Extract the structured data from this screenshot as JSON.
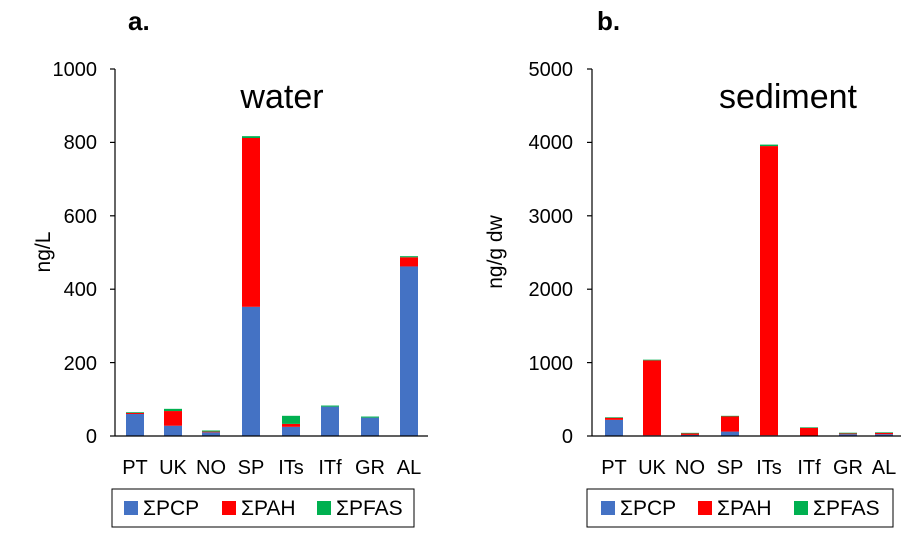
{
  "colors": {
    "PCP": "#4472C4",
    "PAH": "#FF0000",
    "PFAS": "#00B050"
  },
  "chart_data": [
    {
      "type": "bar",
      "stacked": true,
      "panel_label": "a.",
      "title": "water",
      "ylabel": "ng/L",
      "xlabel": "",
      "ylim": [
        0,
        1000
      ],
      "yticks": [
        "0",
        "200",
        "400",
        "600",
        "800",
        "1000"
      ],
      "categories": [
        "PT",
        "UK",
        "NO",
        "SP",
        "ITs",
        "ITf",
        "GR",
        "AL"
      ],
      "series": [
        {
          "name": "ΣPCP",
          "key": "PCP",
          "values": [
            60,
            28,
            10,
            352,
            25,
            80,
            50,
            462
          ]
        },
        {
          "name": "ΣPAH",
          "key": "PAH",
          "values": [
            3,
            40,
            2,
            460,
            8,
            0,
            0,
            25
          ]
        },
        {
          "name": "ΣPFAS",
          "key": "PFAS",
          "values": [
            2,
            6,
            3,
            5,
            22,
            3,
            3,
            3
          ]
        }
      ],
      "legend_position": "bottom"
    },
    {
      "type": "bar",
      "stacked": true,
      "panel_label": "b.",
      "title": "sediment",
      "ylabel": "ng/g dw",
      "xlabel": "",
      "ylim": [
        0,
        5000
      ],
      "yticks": [
        "0",
        "1000",
        "2000",
        "3000",
        "4000",
        "5000"
      ],
      "categories": [
        "PT",
        "UK",
        "NO",
        "SP",
        "ITs",
        "ITf",
        "GR",
        "AL"
      ],
      "series": [
        {
          "name": "ΣPCP",
          "key": "PCP",
          "values": [
            220,
            10,
            15,
            60,
            10,
            5,
            25,
            25
          ]
        },
        {
          "name": "ΣPAH",
          "key": "PAH",
          "values": [
            30,
            1020,
            20,
            210,
            3940,
            110,
            10,
            20
          ]
        },
        {
          "name": "ΣPFAS",
          "key": "PFAS",
          "values": [
            5,
            10,
            8,
            5,
            20,
            3,
            10,
            5
          ]
        }
      ],
      "legend_position": "bottom"
    }
  ]
}
